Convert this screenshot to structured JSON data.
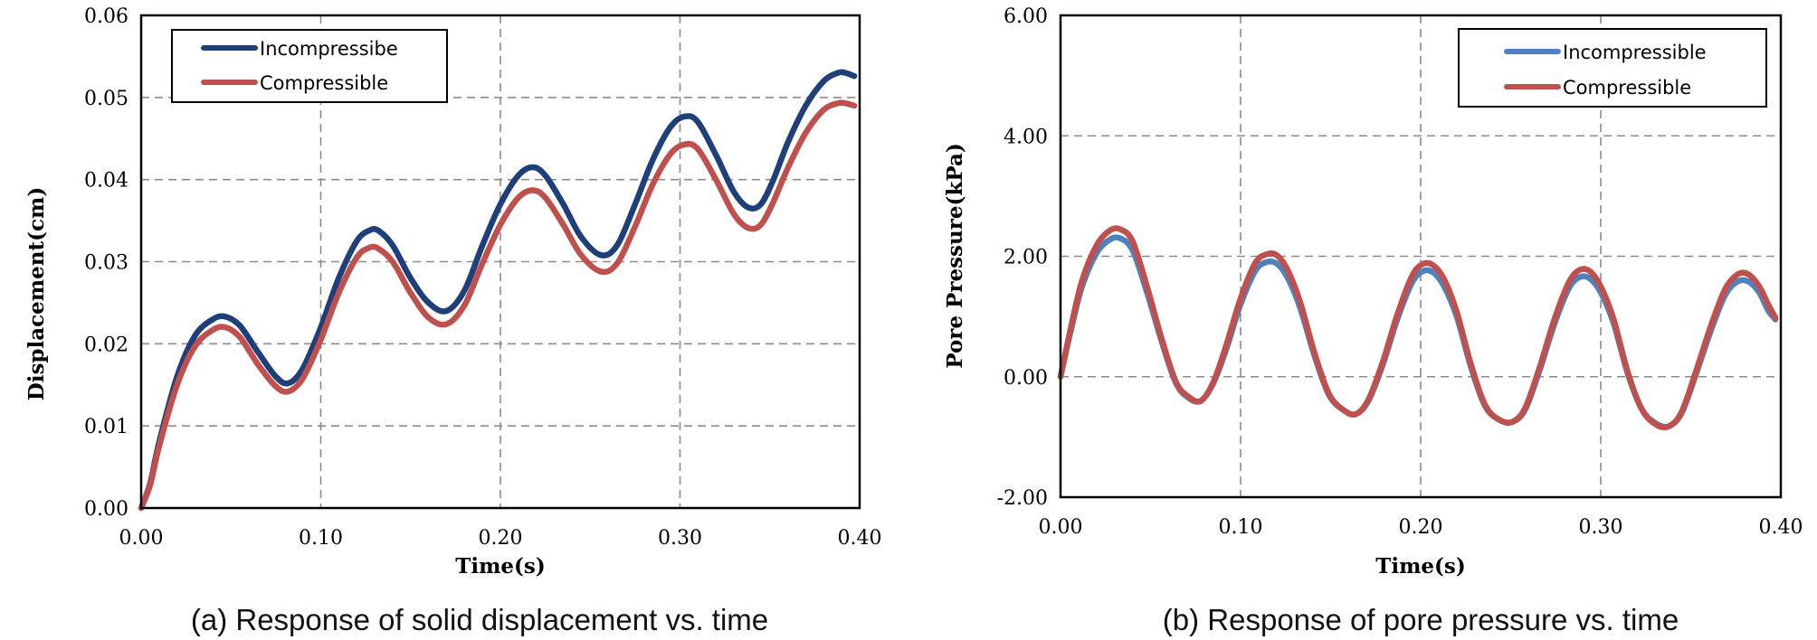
{
  "chart_data": [
    {
      "type": "line",
      "xlabel": "Time(s)",
      "ylabel": "Displacement(cm)",
      "caption": "(a) Response of solid displacement vs. time",
      "xlim": [
        0,
        0.4
      ],
      "ylim": [
        0,
        0.06
      ],
      "xticks": [
        "0.00",
        "0.10",
        "0.20",
        "0.30",
        "0.40"
      ],
      "yticks": [
        "0.00",
        "0.01",
        "0.02",
        "0.03",
        "0.04",
        "0.05",
        "0.06"
      ],
      "grid": true,
      "legend_position": "top-left",
      "series": [
        {
          "name": "Incompressibe",
          "color": "#1F3F7A",
          "x": [
            0.0,
            0.005,
            0.01,
            0.02,
            0.03,
            0.04,
            0.047,
            0.055,
            0.065,
            0.075,
            0.082,
            0.09,
            0.1,
            0.11,
            0.12,
            0.127,
            0.132,
            0.14,
            0.15,
            0.16,
            0.17,
            0.18,
            0.19,
            0.2,
            0.21,
            0.218,
            0.225,
            0.235,
            0.245,
            0.256,
            0.265,
            0.275,
            0.285,
            0.295,
            0.303,
            0.31,
            0.32,
            0.33,
            0.338,
            0.345,
            0.352,
            0.36,
            0.37,
            0.38,
            0.388,
            0.392,
            0.397
          ],
          "y": [
            0.0,
            0.003,
            0.008,
            0.016,
            0.021,
            0.023,
            0.0233,
            0.0222,
            0.019,
            0.016,
            0.0152,
            0.017,
            0.022,
            0.028,
            0.0325,
            0.0338,
            0.0338,
            0.032,
            0.028,
            0.025,
            0.024,
            0.0265,
            0.032,
            0.037,
            0.0405,
            0.0415,
            0.0405,
            0.037,
            0.033,
            0.0308,
            0.032,
            0.037,
            0.0425,
            0.0465,
            0.0477,
            0.047,
            0.043,
            0.0385,
            0.0366,
            0.037,
            0.04,
            0.0445,
            0.049,
            0.052,
            0.053,
            0.053,
            0.0526
          ]
        },
        {
          "name": "Compressible",
          "color": "#C0504D",
          "x": [
            0.0,
            0.005,
            0.01,
            0.02,
            0.03,
            0.04,
            0.047,
            0.055,
            0.065,
            0.075,
            0.082,
            0.09,
            0.1,
            0.11,
            0.12,
            0.127,
            0.132,
            0.14,
            0.15,
            0.16,
            0.17,
            0.18,
            0.19,
            0.2,
            0.21,
            0.218,
            0.225,
            0.235,
            0.245,
            0.256,
            0.265,
            0.275,
            0.285,
            0.295,
            0.303,
            0.31,
            0.32,
            0.33,
            0.338,
            0.345,
            0.352,
            0.36,
            0.37,
            0.38,
            0.388,
            0.392,
            0.397
          ],
          "y": [
            0.0,
            0.0028,
            0.0075,
            0.015,
            0.0197,
            0.0217,
            0.022,
            0.0208,
            0.0175,
            0.0148,
            0.0142,
            0.0158,
            0.0205,
            0.0262,
            0.0305,
            0.0317,
            0.0316,
            0.03,
            0.0262,
            0.0232,
            0.0224,
            0.0247,
            0.0298,
            0.0345,
            0.0378,
            0.0387,
            0.0378,
            0.0345,
            0.0308,
            0.0288,
            0.0298,
            0.0343,
            0.0395,
            0.0432,
            0.0443,
            0.0437,
            0.04,
            0.0358,
            0.0341,
            0.0345,
            0.0373,
            0.0414,
            0.0457,
            0.0485,
            0.0493,
            0.0493,
            0.049
          ]
        }
      ]
    },
    {
      "type": "line",
      "xlabel": "Time(s)",
      "ylabel": "Pore Pressure(kPa)",
      "caption": "(b) Response of pore pressure vs. time",
      "xlim": [
        0,
        0.4
      ],
      "ylim": [
        -2.0,
        6.0
      ],
      "xticks": [
        "0.00",
        "0.10",
        "0.20",
        "0.30",
        "0.40"
      ],
      "yticks": [
        "-2.00",
        "0.00",
        "2.00",
        "4.00",
        "6.00"
      ],
      "grid": true,
      "legend_position": "top-right",
      "series": [
        {
          "name": "Incompressible",
          "color": "#4F81BD",
          "x": [
            0.0,
            0.006,
            0.012,
            0.02,
            0.027,
            0.033,
            0.04,
            0.048,
            0.056,
            0.064,
            0.071,
            0.078,
            0.085,
            0.092,
            0.1,
            0.108,
            0.114,
            0.12,
            0.126,
            0.133,
            0.141,
            0.149,
            0.157,
            0.164,
            0.171,
            0.179,
            0.187,
            0.195,
            0.201,
            0.207,
            0.213,
            0.22,
            0.228,
            0.236,
            0.244,
            0.251,
            0.258,
            0.266,
            0.274,
            0.282,
            0.288,
            0.294,
            0.3,
            0.307,
            0.315,
            0.323,
            0.331,
            0.338,
            0.345,
            0.353,
            0.361,
            0.369,
            0.376,
            0.382,
            0.388,
            0.393,
            0.397
          ],
          "y": [
            0.0,
            0.8,
            1.5,
            2.05,
            2.27,
            2.3,
            2.1,
            1.4,
            0.6,
            -0.1,
            -0.35,
            -0.4,
            -0.1,
            0.45,
            1.2,
            1.75,
            1.9,
            1.88,
            1.65,
            1.15,
            0.35,
            -0.3,
            -0.55,
            -0.62,
            -0.4,
            0.2,
            0.95,
            1.55,
            1.75,
            1.73,
            1.5,
            1.0,
            0.15,
            -0.5,
            -0.72,
            -0.75,
            -0.55,
            0.1,
            0.85,
            1.45,
            1.65,
            1.63,
            1.4,
            0.9,
            0.05,
            -0.55,
            -0.78,
            -0.82,
            -0.6,
            0.05,
            0.75,
            1.35,
            1.58,
            1.58,
            1.4,
            1.1,
            0.95
          ]
        },
        {
          "name": "Compressible",
          "color": "#C0504D",
          "x": [
            0.0,
            0.006,
            0.012,
            0.02,
            0.027,
            0.033,
            0.04,
            0.048,
            0.056,
            0.064,
            0.071,
            0.078,
            0.085,
            0.092,
            0.1,
            0.108,
            0.114,
            0.12,
            0.126,
            0.133,
            0.141,
            0.149,
            0.157,
            0.164,
            0.171,
            0.179,
            0.187,
            0.195,
            0.201,
            0.207,
            0.213,
            0.22,
            0.228,
            0.236,
            0.244,
            0.251,
            0.258,
            0.266,
            0.274,
            0.282,
            0.288,
            0.294,
            0.3,
            0.307,
            0.315,
            0.323,
            0.331,
            0.338,
            0.345,
            0.353,
            0.361,
            0.369,
            0.376,
            0.382,
            0.388,
            0.393,
            0.397
          ],
          "y": [
            0.0,
            0.85,
            1.6,
            2.18,
            2.42,
            2.45,
            2.25,
            1.5,
            0.65,
            -0.08,
            -0.33,
            -0.4,
            -0.08,
            0.52,
            1.3,
            1.88,
            2.03,
            2.02,
            1.78,
            1.25,
            0.4,
            -0.28,
            -0.55,
            -0.62,
            -0.38,
            0.25,
            1.03,
            1.66,
            1.87,
            1.85,
            1.62,
            1.08,
            0.2,
            -0.48,
            -0.72,
            -0.75,
            -0.52,
            0.15,
            0.93,
            1.55,
            1.77,
            1.75,
            1.5,
            0.97,
            0.08,
            -0.55,
            -0.8,
            -0.82,
            -0.58,
            0.1,
            0.83,
            1.45,
            1.7,
            1.7,
            1.5,
            1.2,
            0.98
          ]
        }
      ]
    }
  ]
}
